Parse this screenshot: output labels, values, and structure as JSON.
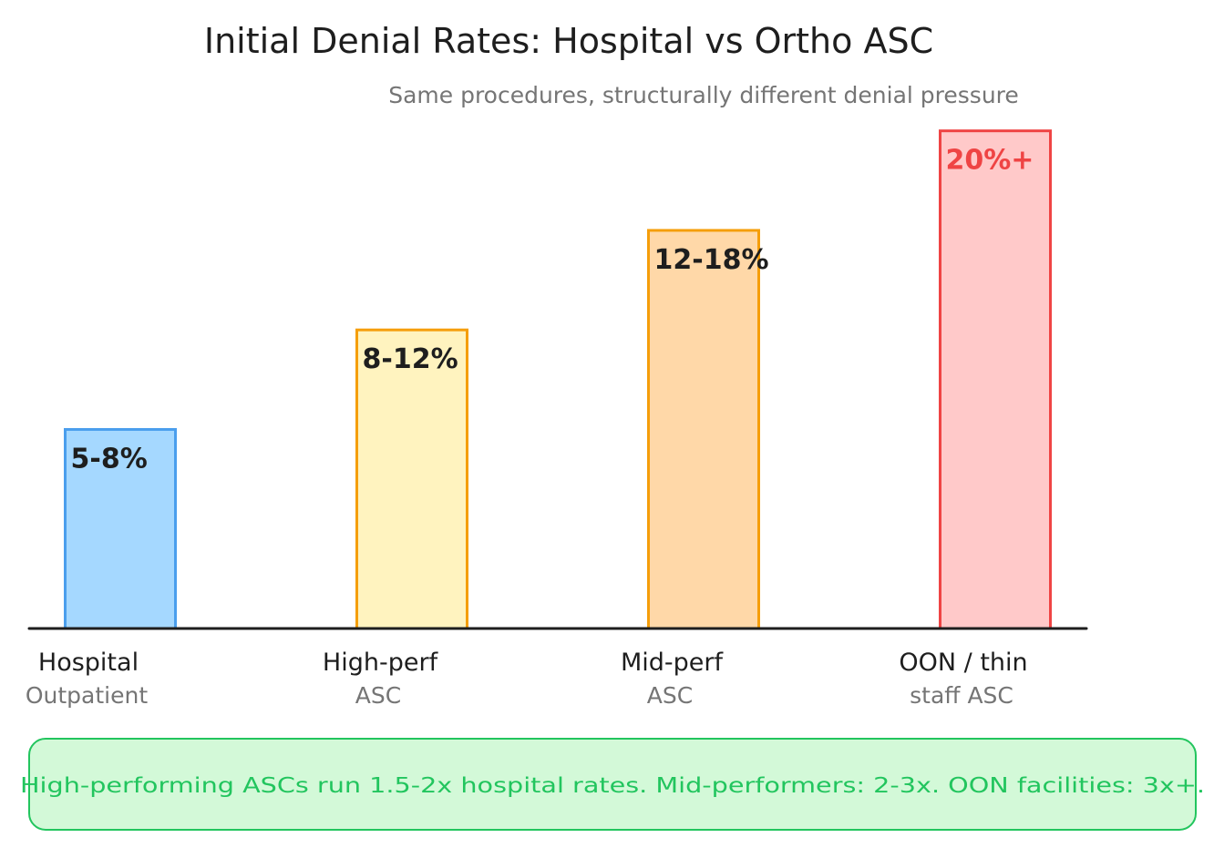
{
  "colors": {
    "text": "#1e1e1e",
    "muted": "#757575",
    "axis": "#1e1e1e"
  },
  "chart_data": {
    "type": "bar",
    "title": "Initial Denial Rates: Hospital vs Ortho ASC",
    "subtitle": "Same procedures, structurally different denial pressure",
    "xlabel": "",
    "ylabel": "",
    "ylim": [
      0,
      20.5
    ],
    "grid": false,
    "legend": "none",
    "categories": [
      {
        "line1": "Hospital",
        "line2": "Outpatient"
      },
      {
        "line1": "High-perf",
        "line2": "ASC"
      },
      {
        "line1": "Mid-perf",
        "line2": "ASC"
      },
      {
        "line1": "OON / thin",
        "line2": "staff ASC"
      }
    ],
    "values": [
      8,
      12,
      16,
      20
    ],
    "data_labels": [
      "5-8%",
      "8-12%",
      "12-18%",
      "20%+"
    ],
    "bar_fills": [
      "#a5d8ff",
      "#fff3bf",
      "#ffd8a8",
      "#ffc9c9"
    ],
    "bar_strokes": [
      "#4a9eed",
      "#f59e0b",
      "#f59e0b",
      "#ef4444"
    ],
    "label_colors": [
      "#1e1e1e",
      "#1e1e1e",
      "#1e1e1e",
      "#ef4444"
    ]
  },
  "note": {
    "text": "High-performing ASCs run 1.5-2x hospital rates. Mid-performers: 2-3x. OON facilities: 3x+.",
    "fill": "#d3f9d8",
    "stroke": "#22c55e",
    "text_color": "#22c55e"
  }
}
